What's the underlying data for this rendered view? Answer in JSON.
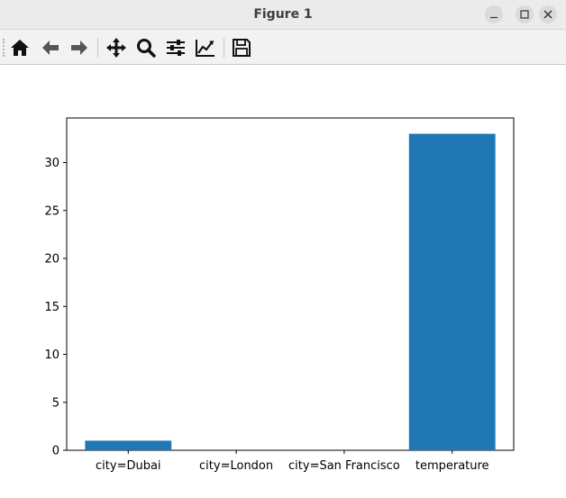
{
  "window": {
    "title": "Figure 1",
    "controls": [
      "minimize-icon",
      "maximize-icon",
      "close-icon"
    ]
  },
  "toolbar": {
    "buttons": [
      {
        "name": "home-icon",
        "tooltip": "Reset original view"
      },
      {
        "name": "back-arrow-icon",
        "tooltip": "Back to previous view"
      },
      {
        "name": "forward-arrow-icon",
        "tooltip": "Forward to next view"
      },
      {
        "name": "pan-icon",
        "tooltip": "Pan axes"
      },
      {
        "name": "zoom-icon",
        "tooltip": "Zoom to rectangle"
      },
      {
        "name": "configure-subplots-icon",
        "tooltip": "Configure subplots"
      },
      {
        "name": "edit-axes-icon",
        "tooltip": "Edit axis, curve and image parameters"
      },
      {
        "name": "save-icon",
        "tooltip": "Save the figure"
      }
    ]
  },
  "chart_data": {
    "type": "bar",
    "categories": [
      "city=Dubai",
      "city=London",
      "city=San Francisco",
      "temperature"
    ],
    "values": [
      1,
      0,
      0,
      33
    ],
    "title": "",
    "xlabel": "",
    "ylabel": "",
    "ylim": [
      0,
      34.65
    ],
    "yticks": [
      0,
      5,
      10,
      15,
      20,
      25,
      30
    ],
    "grid": false,
    "bar_color": "#1f77b4"
  }
}
